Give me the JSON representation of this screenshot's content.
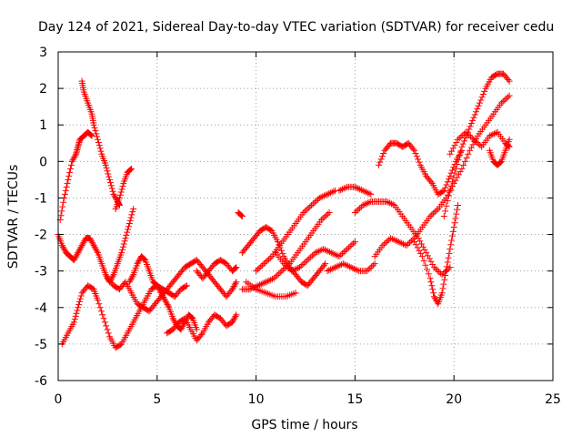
{
  "chart_data": {
    "type": "scatter",
    "title": "Day 124 of 2021, Sidereal Day-to-day VTEC variation (SDTVAR) for receiver cedu",
    "xlabel": "GPS time / hours",
    "ylabel": "SDTVAR / TECUs",
    "xlim": [
      0,
      25
    ],
    "ylim": [
      -6,
      3
    ],
    "xticks": [
      "0",
      "5",
      "10",
      "15",
      "20",
      "25"
    ],
    "yticks": [
      "-6",
      "-5",
      "-4",
      "-3",
      "-2",
      "-1",
      "0",
      "1",
      "2",
      "3"
    ],
    "grid": true,
    "legend": "none",
    "marker": "+",
    "color": "#ff0000",
    "series": [
      {
        "x": [
          0.1,
          0.3,
          0.5,
          0.7,
          0.9,
          1.0,
          1.1,
          1.3,
          1.5,
          1.7
        ],
        "y": [
          -1.6,
          -1.0,
          -0.5,
          0.0,
          0.2,
          0.4,
          0.6,
          0.7,
          0.8,
          0.7
        ]
      },
      {
        "x": [
          1.2,
          1.3,
          1.5,
          1.7,
          1.8,
          2.0,
          2.2,
          2.4,
          2.6,
          2.8,
          3.0,
          3.1
        ],
        "y": [
          2.2,
          1.9,
          1.6,
          1.3,
          1.0,
          0.6,
          0.2,
          -0.1,
          -0.5,
          -0.9,
          -1.1,
          -1.2
        ]
      },
      {
        "x": [
          2.9,
          3.1,
          3.3,
          3.5,
          3.7
        ],
        "y": [
          -1.3,
          -1.0,
          -0.6,
          -0.3,
          -0.2
        ]
      },
      {
        "x": [
          0.0,
          0.2,
          0.4,
          0.6,
          0.8,
          1.0,
          1.2,
          1.4,
          1.6,
          1.8,
          2.0,
          2.2,
          2.4,
          2.6,
          2.8,
          3.0,
          3.2,
          3.4,
          3.6,
          3.8
        ],
        "y": [
          -2.0,
          -2.3,
          -2.5,
          -2.6,
          -2.7,
          -2.5,
          -2.3,
          -2.1,
          -2.1,
          -2.3,
          -2.5,
          -2.8,
          -3.1,
          -3.3,
          -3.1,
          -2.8,
          -2.5,
          -2.1,
          -1.7,
          -1.3
        ]
      },
      {
        "x": [
          0.2,
          0.5,
          0.8,
          1.0,
          1.2,
          1.5,
          1.8,
          2.0,
          2.3,
          2.6,
          2.9,
          3.2,
          3.5,
          3.8,
          4.1,
          4.4,
          4.7,
          5.0,
          5.3,
          5.6,
          5.9,
          6.2,
          6.5
        ],
        "y": [
          -5.0,
          -4.7,
          -4.4,
          -4.0,
          -3.6,
          -3.4,
          -3.5,
          -3.8,
          -4.3,
          -4.8,
          -5.1,
          -5.0,
          -4.7,
          -4.4,
          -4.1,
          -3.8,
          -3.5,
          -3.4,
          -3.5,
          -3.6,
          -3.7,
          -3.5,
          -3.4
        ]
      },
      {
        "x": [
          3.6,
          3.8,
          4.0,
          4.2,
          4.4,
          4.6,
          4.8,
          5.0,
          5.2,
          5.4,
          5.6,
          5.8,
          6.0,
          6.2,
          6.4,
          6.6,
          6.8,
          7.0
        ],
        "y": [
          -3.3,
          -3.1,
          -2.8,
          -2.6,
          -2.7,
          -3.0,
          -3.3,
          -3.4,
          -3.6,
          -3.8,
          -4.0,
          -4.3,
          -4.5,
          -4.6,
          -4.4,
          -4.2,
          -4.3,
          -4.6
        ]
      },
      {
        "x": [
          2.5,
          2.8,
          3.1,
          3.4,
          3.7,
          4.0,
          4.3,
          4.6,
          4.9,
          5.2,
          5.5,
          5.8,
          6.1,
          6.4,
          6.7,
          7.0,
          7.3,
          7.6,
          7.9,
          8.2,
          8.5,
          8.8,
          9.0
        ],
        "y": [
          -3.2,
          -3.4,
          -3.5,
          -3.3,
          -3.6,
          -3.9,
          -4.0,
          -4.1,
          -3.9,
          -3.7,
          -3.5,
          -3.3,
          -3.1,
          -2.9,
          -2.8,
          -2.7,
          -2.9,
          -3.1,
          -3.3,
          -3.5,
          -3.7,
          -3.5,
          -3.3
        ]
      },
      {
        "x": [
          5.5,
          5.8,
          6.1,
          6.4,
          6.7,
          7.0,
          7.3,
          7.6,
          7.9,
          8.2,
          8.5,
          8.8,
          9.0
        ],
        "y": [
          -4.7,
          -4.6,
          -4.4,
          -4.3,
          -4.6,
          -4.9,
          -4.7,
          -4.4,
          -4.2,
          -4.3,
          -4.5,
          -4.4,
          -4.2
        ]
      },
      {
        "x": [
          7.0,
          7.3,
          7.6,
          7.9,
          8.2,
          8.5,
          8.8,
          9.0
        ],
        "y": [
          -3.0,
          -3.2,
          -3.0,
          -2.8,
          -2.7,
          -2.8,
          -3.0,
          -2.9
        ]
      },
      {
        "x": [
          9.1,
          9.3
        ],
        "y": [
          -1.4,
          -1.5
        ]
      },
      {
        "x": [
          9.3,
          9.6,
          9.9,
          10.2,
          10.5,
          10.8,
          11.1,
          11.4,
          11.7,
          12.0,
          12.3,
          12.6,
          12.9,
          13.2,
          13.5
        ],
        "y": [
          -2.5,
          -2.3,
          -2.1,
          -1.9,
          -1.8,
          -1.9,
          -2.2,
          -2.6,
          -2.9,
          -3.1,
          -3.3,
          -3.4,
          -3.2,
          -3.0,
          -2.8
        ]
      },
      {
        "x": [
          9.3,
          9.7,
          10.1,
          10.5,
          10.9,
          11.3,
          11.7,
          12.1,
          12.5,
          12.9,
          13.3,
          13.7
        ],
        "y": [
          -3.5,
          -3.5,
          -3.4,
          -3.3,
          -3.2,
          -3.0,
          -2.8,
          -2.5,
          -2.2,
          -1.9,
          -1.6,
          -1.4
        ]
      },
      {
        "x": [
          9.5,
          10.0,
          10.5,
          11.0,
          11.5,
          12.0
        ],
        "y": [
          -3.3,
          -3.5,
          -3.6,
          -3.7,
          -3.7,
          -3.6
        ]
      },
      {
        "x": [
          10.0,
          10.4,
          10.8,
          11.2,
          11.6,
          12.0,
          12.4,
          12.8,
          13.2,
          13.6,
          14.0
        ],
        "y": [
          -3.0,
          -2.8,
          -2.6,
          -2.3,
          -2.0,
          -1.7,
          -1.4,
          -1.2,
          -1.0,
          -0.9,
          -0.8
        ]
      },
      {
        "x": [
          11.0,
          11.4,
          11.8,
          12.2,
          12.6,
          13.0,
          13.4,
          13.8,
          14.2,
          14.6,
          15.0
        ],
        "y": [
          -2.5,
          -2.8,
          -3.0,
          -2.9,
          -2.7,
          -2.5,
          -2.4,
          -2.5,
          -2.6,
          -2.4,
          -2.2
        ]
      },
      {
        "x": [
          13.6,
          14.0,
          14.4,
          14.8,
          15.2,
          15.6,
          16.0
        ],
        "y": [
          -3.0,
          -2.9,
          -2.8,
          -2.9,
          -3.0,
          -3.0,
          -2.8
        ]
      },
      {
        "x": [
          14.2,
          14.6,
          15.0,
          15.4,
          15.8
        ],
        "y": [
          -0.8,
          -0.7,
          -0.7,
          -0.8,
          -0.9
        ]
      },
      {
        "x": [
          15.0,
          15.4,
          15.8,
          16.2,
          16.6,
          17.0,
          17.4,
          17.8,
          18.2,
          18.6,
          19.0,
          19.4,
          19.8
        ],
        "y": [
          -1.4,
          -1.2,
          -1.1,
          -1.1,
          -1.1,
          -1.2,
          -1.5,
          -1.8,
          -2.1,
          -2.5,
          -2.9,
          -3.1,
          -2.9
        ]
      },
      {
        "x": [
          16.0,
          16.4,
          16.8,
          17.2,
          17.6,
          18.0,
          18.4,
          18.8,
          19.2,
          19.6,
          20.0,
          20.4,
          20.8,
          21.2,
          21.6,
          22.0,
          22.4,
          22.8
        ],
        "y": [
          -2.6,
          -2.3,
          -2.1,
          -2.2,
          -2.3,
          -2.1,
          -1.8,
          -1.5,
          -1.3,
          -1.0,
          -0.6,
          -0.2,
          0.3,
          0.7,
          1.0,
          1.3,
          1.6,
          1.8
        ]
      },
      {
        "x": [
          16.2,
          16.5,
          16.8,
          17.1,
          17.4,
          17.7,
          18.0,
          18.3,
          18.6,
          18.9,
          19.2,
          19.5,
          19.8,
          20.1,
          20.4
        ],
        "y": [
          -0.1,
          0.3,
          0.5,
          0.5,
          0.4,
          0.5,
          0.3,
          -0.1,
          -0.4,
          -0.6,
          -0.9,
          -0.8,
          -0.4,
          0.0,
          0.3
        ]
      },
      {
        "x": [
          18.0,
          18.4,
          18.8,
          19.0,
          19.2,
          19.4,
          19.6,
          19.8,
          20.0,
          20.2
        ],
        "y": [
          -2.2,
          -2.6,
          -3.2,
          -3.7,
          -3.9,
          -3.6,
          -3.0,
          -2.4,
          -1.8,
          -1.2
        ]
      },
      {
        "x": [
          19.5,
          19.8,
          20.1,
          20.4,
          20.7,
          21.0,
          21.3,
          21.6,
          21.9,
          22.2,
          22.5,
          22.8
        ],
        "y": [
          -1.5,
          -0.8,
          -0.2,
          0.4,
          0.8,
          1.2,
          1.6,
          2.0,
          2.3,
          2.4,
          2.4,
          2.2
        ]
      },
      {
        "x": [
          19.8,
          20.2,
          20.6,
          21.0,
          21.4,
          21.8,
          22.2,
          22.6,
          22.8
        ],
        "y": [
          0.2,
          0.6,
          0.8,
          0.6,
          0.4,
          0.7,
          0.8,
          0.5,
          0.4
        ]
      },
      {
        "x": [
          21.8,
          22.0,
          22.2,
          22.4,
          22.6,
          22.8
        ],
        "y": [
          0.3,
          0.0,
          -0.1,
          0.0,
          0.3,
          0.6
        ]
      }
    ]
  }
}
